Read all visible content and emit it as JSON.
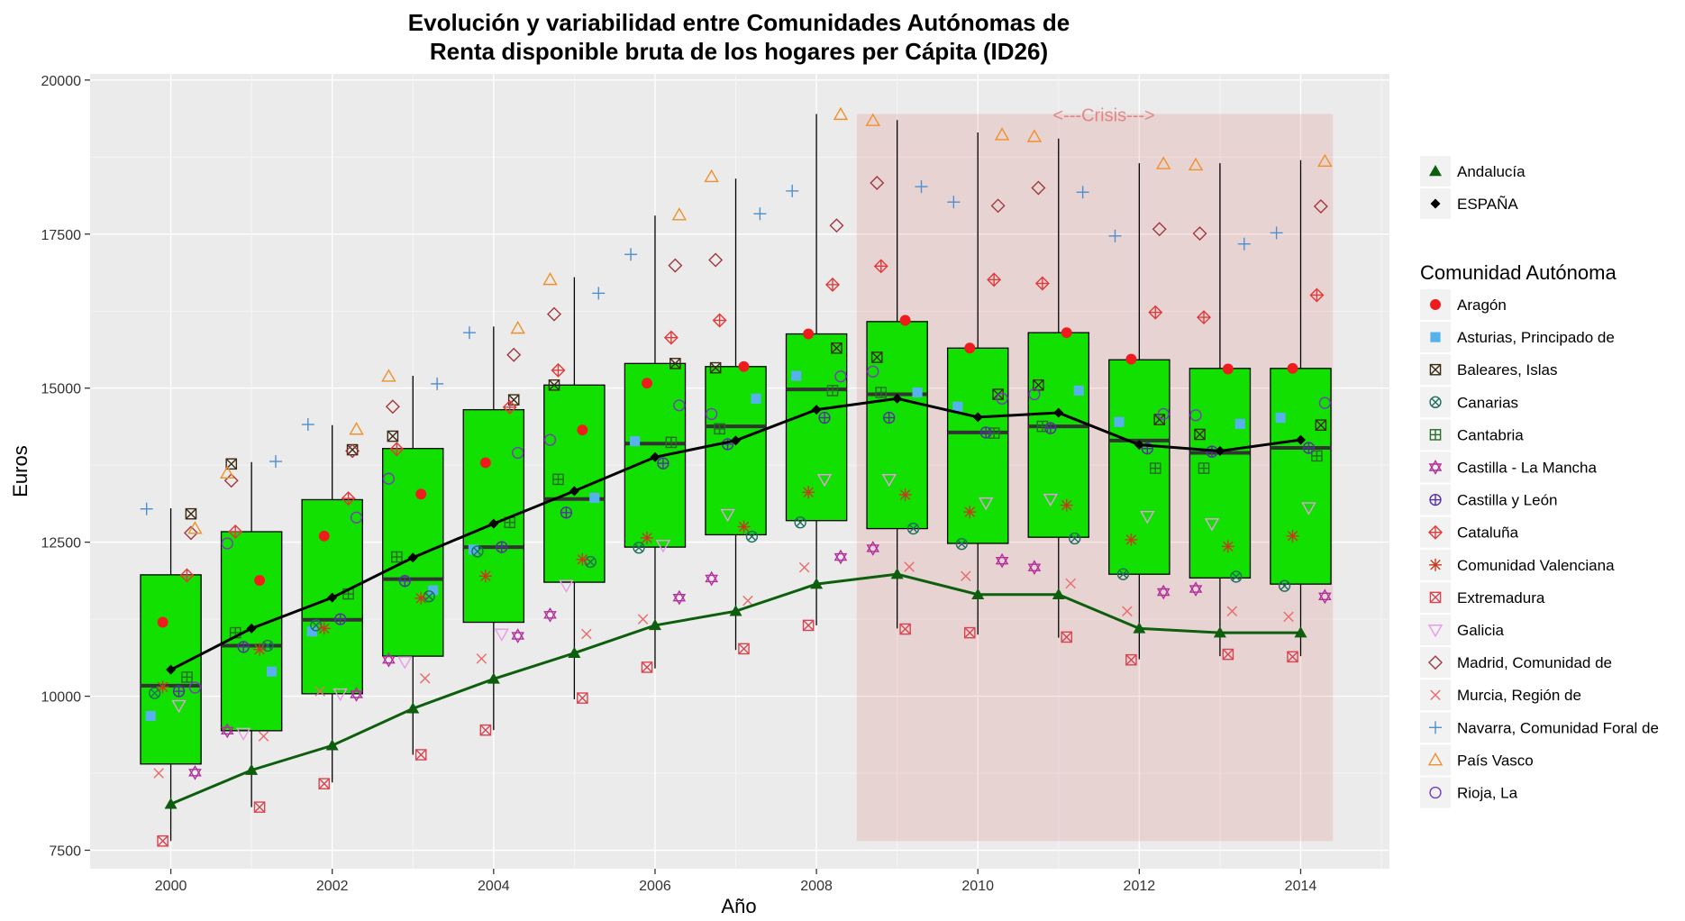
{
  "chart_data": {
    "type": "box",
    "title_line1": "Evolución y variabilidad entre Comunidades Autónomas de",
    "title_line2": "Renta disponible bruta de los hogares per Cápita (ID26)",
    "xlabel": "Año",
    "ylabel": "Euros",
    "xlim": [
      1999,
      2015.1
    ],
    "ylim": [
      7200,
      20100
    ],
    "x_ticks": [
      2000,
      2002,
      2004,
      2006,
      2008,
      2010,
      2012,
      2014
    ],
    "y_ticks": [
      7500,
      10000,
      12500,
      15000,
      17500,
      20000
    ],
    "grid": true,
    "crisis": {
      "x0": 2008.5,
      "x1": 2014.4,
      "y0": 7650,
      "y1": 19450,
      "label": "<---Crisis--->",
      "color": "#e06a6a"
    },
    "box_fill": "#11e000",
    "years": [
      2000,
      2001,
      2002,
      2003,
      2004,
      2005,
      2006,
      2007,
      2008,
      2009,
      2010,
      2011,
      2012,
      2013,
      2014
    ],
    "boxes": [
      {
        "min": 7650,
        "q1": 8900,
        "median": 10170,
        "q3": 11970,
        "max": 13050
      },
      {
        "min": 8200,
        "q1": 9440,
        "median": 10820,
        "q3": 12670,
        "max": 13800
      },
      {
        "min": 8600,
        "q1": 10040,
        "median": 11240,
        "q3": 13190,
        "max": 14400
      },
      {
        "min": 9050,
        "q1": 10650,
        "median": 11900,
        "q3": 14020,
        "max": 15200
      },
      {
        "min": 9450,
        "q1": 11200,
        "median": 12420,
        "q3": 14650,
        "max": 16000
      },
      {
        "min": 9950,
        "q1": 11850,
        "median": 13200,
        "q3": 15050,
        "max": 16800
      },
      {
        "min": 10450,
        "q1": 12420,
        "median": 14100,
        "q3": 15400,
        "max": 17800
      },
      {
        "min": 10750,
        "q1": 12620,
        "median": 14380,
        "q3": 15350,
        "max": 18400
      },
      {
        "min": 11150,
        "q1": 12850,
        "median": 14980,
        "q3": 15880,
        "max": 19450
      },
      {
        "min": 11100,
        "q1": 12720,
        "median": 14900,
        "q3": 16080,
        "max": 19350
      },
      {
        "min": 11000,
        "q1": 12480,
        "median": 14280,
        "q3": 15650,
        "max": 19150
      },
      {
        "min": 10950,
        "q1": 12580,
        "median": 14380,
        "q3": 15900,
        "max": 19050
      },
      {
        "min": 10600,
        "q1": 11980,
        "median": 14150,
        "q3": 15460,
        "max": 18650
      },
      {
        "min": 10650,
        "q1": 11920,
        "median": 13950,
        "q3": 15320,
        "max": 18650
      },
      {
        "min": 10650,
        "q1": 11820,
        "median": 14030,
        "q3": 15320,
        "max": 18700
      }
    ],
    "series": [
      {
        "name": "Andalucía",
        "color": "#0d5e0d",
        "marker": "triangle",
        "values": [
          8250,
          8800,
          9200,
          9800,
          10280,
          10700,
          11150,
          11380,
          11820,
          11980,
          11650,
          11650,
          11100,
          11030,
          11030
        ]
      },
      {
        "name": "ESPAÑA",
        "color": "#000000",
        "marker": "diamond",
        "values": [
          10430,
          11100,
          11600,
          12250,
          12800,
          13330,
          13880,
          14150,
          14650,
          14830,
          14530,
          14600,
          14080,
          13980,
          14160
        ]
      }
    ],
    "regions": [
      {
        "name": "Aragón",
        "shape": "circle-fill",
        "color": "#ee1c1c",
        "dx": -0.1,
        "values": [
          11200,
          11880,
          12600,
          13280,
          13790,
          14320,
          15080,
          15350,
          15880,
          16100,
          15650,
          15900,
          15470,
          15310,
          15320
        ]
      },
      {
        "name": "Asturias, Principado de",
        "shape": "square-fill",
        "color": "#55b2ea",
        "dx": -0.25,
        "values": [
          9680,
          10400,
          11050,
          11720,
          12380,
          13220,
          14140,
          14830,
          15200,
          14930,
          14700,
          14960,
          14450,
          14420,
          14520
        ]
      },
      {
        "name": "Baleares, Islas",
        "shape": "square-x",
        "color": "#3c2a14",
        "dx": 0.25,
        "values": [
          12960,
          13770,
          14000,
          14220,
          14810,
          15050,
          15400,
          15330,
          15650,
          15500,
          14900,
          15050,
          14490,
          14250,
          14400
        ]
      },
      {
        "name": "Canarias",
        "shape": "circle-x",
        "color": "#1f6e5e",
        "dx": -0.2,
        "values": [
          10050,
          10820,
          11150,
          11620,
          12350,
          12180,
          12410,
          12590,
          12820,
          12720,
          12470,
          12560,
          11980,
          11940,
          11790
        ]
      },
      {
        "name": "Cantabria",
        "shape": "square-plus",
        "color": "#286a28",
        "dx": 0.2,
        "values": [
          10310,
          11030,
          11660,
          12260,
          12820,
          13520,
          14120,
          14340,
          14960,
          14930,
          14270,
          14380,
          13700,
          13700,
          13900
        ]
      },
      {
        "name": "Castilla - La Mancha",
        "shape": "star6",
        "color": "#b22f9b",
        "dx": 0.3,
        "values": [
          8760,
          9440,
          10030,
          10590,
          10980,
          11320,
          11600,
          11910,
          12260,
          12400,
          12200,
          12090,
          11690,
          11740,
          11620
        ]
      },
      {
        "name": "Castilla y León",
        "shape": "circle-plus",
        "color": "#5530a0",
        "dx": 0.1,
        "values": [
          10080,
          10800,
          11250,
          11870,
          12420,
          12980,
          13780,
          14090,
          14520,
          14520,
          14280,
          14350,
          14020,
          13970,
          14030
        ]
      },
      {
        "name": "Cataluña",
        "shape": "diamond-plus",
        "color": "#e03a3a",
        "dx": 0.2,
        "values": [
          11960,
          12670,
          13210,
          14010,
          14690,
          15290,
          15820,
          16100,
          16680,
          16980,
          16760,
          16700,
          16230,
          16150,
          16510
        ]
      },
      {
        "name": "Comunidad Valenciana",
        "shape": "asterisk",
        "color": "#c33c1e",
        "dx": -0.1,
        "values": [
          10150,
          10760,
          11100,
          11590,
          11950,
          12220,
          12570,
          12750,
          13310,
          13270,
          12990,
          13100,
          12540,
          12430,
          12600
        ]
      },
      {
        "name": "Extremadura",
        "shape": "square-x",
        "color": "#d94450",
        "dx": -0.1,
        "values": [
          7650,
          8200,
          8580,
          9050,
          9450,
          9970,
          10470,
          10770,
          11150,
          11090,
          11030,
          10960,
          10590,
          10680,
          10640
        ]
      },
      {
        "name": "Galicia",
        "shape": "triangle-down",
        "color": "#e99be8",
        "dx": 0.1,
        "values": [
          9850,
          9400,
          10040,
          10560,
          11010,
          11800,
          12450,
          12950,
          13520,
          13520,
          13140,
          13200,
          12920,
          12800,
          13060
        ]
      },
      {
        "name": "Madrid, Comunidad de",
        "shape": "diamond",
        "color": "#a1383e",
        "dx": 0.25,
        "values": [
          12650,
          13500,
          13980,
          14700,
          15540,
          16200,
          16990,
          17080,
          17640,
          18330,
          17960,
          18250,
          17580,
          17510,
          17950
        ]
      },
      {
        "name": "Murcia, Región de",
        "shape": "x",
        "color": "#ea6a6a",
        "dx": -0.15,
        "values": [
          8750,
          9350,
          10080,
          10290,
          10610,
          11010,
          11250,
          11550,
          12090,
          12100,
          11950,
          11830,
          11380,
          11380,
          11290
        ]
      },
      {
        "name": "Navarra, Comunidad Foral de",
        "shape": "plus",
        "color": "#4f8fcf",
        "dx": -0.3,
        "values": [
          13040,
          13810,
          14410,
          15070,
          15900,
          16540,
          17170,
          17830,
          18200,
          18270,
          18020,
          18180,
          17470,
          17340,
          17520
        ]
      },
      {
        "name": "País Vasco",
        "shape": "triangle-up",
        "color": "#f0902a",
        "dx": 0.3,
        "values": [
          12720,
          13620,
          14330,
          15190,
          15970,
          16760,
          17810,
          18430,
          19440,
          19340,
          19110,
          19080,
          18640,
          18620,
          18680
        ]
      },
      {
        "name": "Rioja, La",
        "shape": "circle-open",
        "color": "#7a3ac0",
        "dx": 0.3,
        "values": [
          10140,
          12480,
          12900,
          13530,
          13950,
          14160,
          14720,
          14580,
          15190,
          15270,
          14830,
          14900,
          14580,
          14560,
          14760
        ]
      }
    ],
    "legend_top": [
      {
        "label": "Andalucía",
        "marker": "triangle",
        "color": "#0d5e0d"
      },
      {
        "label": "ESPAÑA",
        "marker": "diamond",
        "color": "#000000"
      }
    ],
    "legend_title": "Comunidad Autónoma",
    "legend_position": "right"
  }
}
